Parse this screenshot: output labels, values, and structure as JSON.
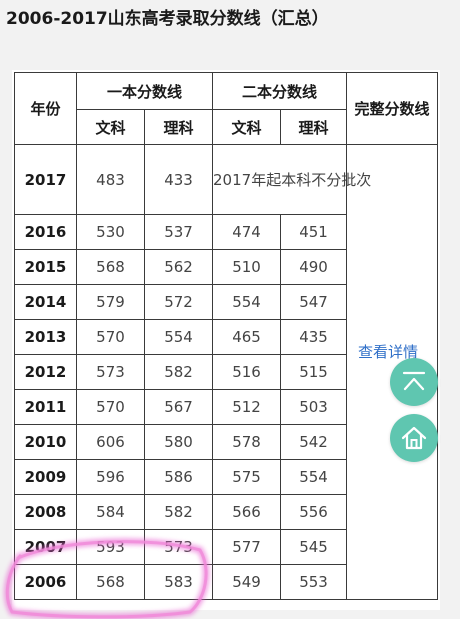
{
  "title": "2006-2017山东高考录取分数线（汇总）",
  "table": {
    "header": {
      "year": "年份",
      "tier1": "一本分数线",
      "tier2": "二本分数线",
      "full": "完整分数线",
      "wenke": "文科",
      "like": "理科"
    },
    "rows": [
      {
        "year": "2017",
        "t1_wen": "483",
        "t1_li": "433",
        "note": "2017年起本科不分批次"
      },
      {
        "year": "2016",
        "t1_wen": "530",
        "t1_li": "537",
        "t2_wen": "474",
        "t2_li": "451"
      },
      {
        "year": "2015",
        "t1_wen": "568",
        "t1_li": "562",
        "t2_wen": "510",
        "t2_li": "490"
      },
      {
        "year": "2014",
        "t1_wen": "579",
        "t1_li": "572",
        "t2_wen": "554",
        "t2_li": "547"
      },
      {
        "year": "2013",
        "t1_wen": "570",
        "t1_li": "554",
        "t2_wen": "465",
        "t2_li": "435"
      },
      {
        "year": "2012",
        "t1_wen": "573",
        "t1_li": "582",
        "t2_wen": "516",
        "t2_li": "515"
      },
      {
        "year": "2011",
        "t1_wen": "570",
        "t1_li": "567",
        "t2_wen": "512",
        "t2_li": "503"
      },
      {
        "year": "2010",
        "t1_wen": "606",
        "t1_li": "580",
        "t2_wen": "578",
        "t2_li": "542"
      },
      {
        "year": "2009",
        "t1_wen": "596",
        "t1_li": "586",
        "t2_wen": "575",
        "t2_li": "554"
      },
      {
        "year": "2008",
        "t1_wen": "584",
        "t1_li": "582",
        "t2_wen": "566",
        "t2_li": "556"
      },
      {
        "year": "2007",
        "t1_wen": "593",
        "t1_li": "573",
        "t2_wen": "577",
        "t2_li": "545"
      },
      {
        "year": "2006",
        "t1_wen": "568",
        "t1_li": "583",
        "t2_wen": "549",
        "t2_li": "553"
      }
    ],
    "details_link": "查看详情"
  },
  "buttons": {
    "top_icon": "chevron-up-icon",
    "home_icon": "home-icon"
  },
  "colors": {
    "fab": "#5fc6b0",
    "link": "#2f6fc8",
    "highlight": "#e85fd0"
  }
}
